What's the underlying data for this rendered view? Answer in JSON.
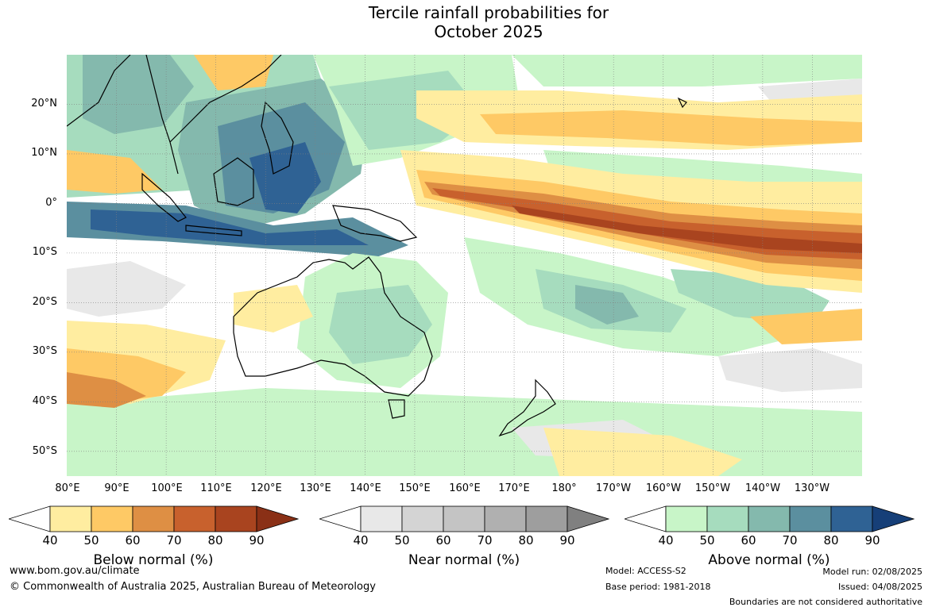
{
  "title": {
    "line1": "Tercile rainfall probabilities for",
    "line2": "October 2025"
  },
  "map": {
    "latitude_labels": [
      "20°N",
      "10°N",
      "0°",
      "10°S",
      "20°S",
      "30°S",
      "40°S",
      "50°S"
    ],
    "longitude_labels": [
      "80°E",
      "90°E",
      "100°E",
      "110°E",
      "120°E",
      "130°E",
      "140°E",
      "150°E",
      "160°E",
      "170°E",
      "180°",
      "170°W",
      "160°W",
      "150°W",
      "140°W",
      "130°W"
    ],
    "colors": {
      "below": [
        "#ffeda0",
        "#fec965",
        "#de8f44",
        "#c8612d",
        "#a9441f",
        "#8a3016"
      ],
      "near": [
        "#e8e8e8",
        "#d4d4d4",
        "#c4c4c4",
        "#b0b0b0",
        "#9e9e9e",
        "#808080"
      ],
      "above": [
        "#c8f5c8",
        "#a6dcbe",
        "#84b9ad",
        "#5b8f9f",
        "#2f6294",
        "#163f78"
      ],
      "land_outline": "#000000",
      "border_outline": "#808080"
    }
  },
  "legend": {
    "below": {
      "label": "Below normal (%)",
      "ticks": [
        "40",
        "50",
        "60",
        "70",
        "80",
        "90"
      ]
    },
    "near": {
      "label": "Near normal (%)",
      "ticks": [
        "40",
        "50",
        "60",
        "70",
        "80",
        "90"
      ]
    },
    "above": {
      "label": "Above normal (%)",
      "ticks": [
        "40",
        "50",
        "60",
        "70",
        "80",
        "90"
      ]
    }
  },
  "footer": {
    "website": "www.bom.gov.au/climate",
    "copyright": "© Commonwealth of Australia 2025, Australian Bureau of Meteorology",
    "model": "Model: ACCESS-S2",
    "base_period": "Base period: 1981-2018",
    "model_run": "Model run: 02/08/2025",
    "issued": "Issued: 04/08/2025",
    "disclaimer": "Boundaries are not considered authoritative"
  }
}
